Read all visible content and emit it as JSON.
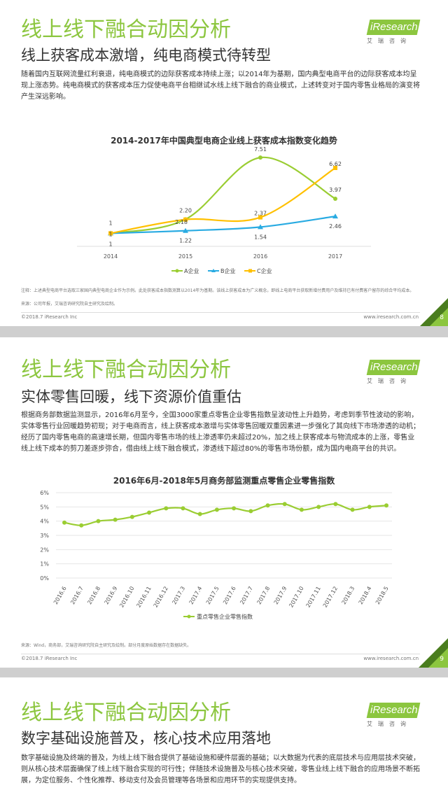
{
  "slides": [
    {
      "title": "线上线下融合动因分析",
      "subtitle": "线上获客成本激增，纯电商模式待转型",
      "body": "随着国内互联网流量红利衰退，纯电商模式的边际获客成本持续上涨；以2014年为基期，国内典型电商平台的边际获客成本均呈现上涨态势。纯电商模式的获客成本压力促使电商平台相继试水线上线下融合的商业模式，上述转变对于国内零售业格局的演变将产生深远影响。",
      "notes": "注释：上述典型电商平台选取三家国内典型电商企业作为示例。此处获客成本指数测算以2014年为基期。该线上获客成本为广义概念，即线上电商平台获取新增付费用户及维持已有付费客户留存的综合平均成本。",
      "source": "来源：公司年报，艾瑞咨询研究院自主研究及绘制。",
      "footer_left": "©2018.7 iResearch Inc",
      "footer_right": "www.iresearch.com.cn",
      "page": "8"
    },
    {
      "title": "线上线下融合动因分析",
      "subtitle": "实体零售回暖，线下资源价值重估",
      "body": "根据商务部数据监测显示，2016年6月至今，全国3000家重点零售企业零售指数呈波动性上升趋势，考虑到季节性波动的影响，实体零售行业回暖趋势初现；对于电商而言，线上获客成本激增与实体零售回暖双重因素进一步强化了其向线下市场渗透的动机；经历了国内零售电商的高速增长期，但国内零售市场的线上渗透率仍未超过20%，加之线上获客成本与物流成本的上涨，零售业线上线下成本的剪刀差逐步弥合，借由线上线下融合模式，渗透线下超过80%的零售市场份额，成为国内电商平台的共识。",
      "source": "来源：Wind，商务部，艾瑞咨询研究院自主研究及绘制。部分月度原始数据存在数据缺失。",
      "footer_left": "©2018.7 iResearch Inc",
      "footer_right": "www.iresearch.com.cn",
      "page": "9"
    },
    {
      "title": "线上线下融合动因分析",
      "subtitle": "数字基础设施普及，核心技术应用落地",
      "body": "数字基础设施及终端的普及，为线上线下融合提供了基础设施和硬件层面的基础；以大数据为代表的底层技术与应用层技术突破，则从核心技术层面确保了线上线下融合实现的可行性；伴随技术设施普及与核心技术突破，零售业线上线下融合的应用场景不断拓展，为定位服务、个性化推荐、移动支付及会员管理等各场景和应用环节的实现提供支持。"
    }
  ],
  "logo": {
    "brand": "iResearch",
    "i": "i",
    "rest": "Research",
    "sub": "艾瑞咨询"
  },
  "colors": {
    "accent": "#8cc63f",
    "series_a": "#9acd32",
    "series_b": "#29abe2",
    "series_c": "#ffc000"
  },
  "chart_data": [
    {
      "type": "line",
      "title": "2014-2017年中国典型电商企业线上获客成本指数变化趋势",
      "categories": [
        "2014",
        "2015",
        "2016",
        "2017"
      ],
      "series": [
        {
          "name": "A企业",
          "values": [
            1,
            2.2,
            7.51,
            3.97
          ],
          "labels": [
            "1",
            "2.20",
            "7.51",
            "3.97"
          ]
        },
        {
          "name": "B企业",
          "values": [
            1,
            1.22,
            1.54,
            2.46
          ],
          "labels": [
            "1",
            "1.22",
            "1.54",
            "2.46"
          ]
        },
        {
          "name": "C企业",
          "values": [
            1,
            2.18,
            2.37,
            6.62
          ],
          "labels": [
            "1",
            "2.18",
            "2.37",
            "6.62"
          ]
        }
      ],
      "ylim": [
        0,
        8
      ],
      "legend": "bottom",
      "grid": false
    },
    {
      "type": "line",
      "title": "2016年6月-2018年5月商务部监测重点零售企业零售指数",
      "categories": [
        "2016.6",
        "2016.7",
        "2016.8",
        "2016.9",
        "2016.10",
        "2016.11",
        "2016.12",
        "2017.3",
        "2017.4",
        "2017.5",
        "2017.6",
        "2017.7",
        "2017.8",
        "2017.9",
        "2017.10",
        "2017.11",
        "2017.12",
        "2018.3",
        "2018.4",
        "2018.5"
      ],
      "series": [
        {
          "name": "重点零售企业零售指数",
          "values": [
            3.9,
            3.7,
            4.0,
            4.1,
            4.3,
            4.6,
            4.9,
            4.9,
            4.5,
            4.8,
            4.9,
            4.7,
            5.1,
            5.2,
            4.8,
            5.0,
            5.2,
            4.8,
            5.0,
            5.1
          ]
        }
      ],
      "yticks": [
        "0%",
        "1%",
        "2%",
        "3%",
        "4%",
        "5%",
        "6%"
      ],
      "ylim": [
        0,
        6
      ],
      "legend": "bottom",
      "grid": true
    }
  ]
}
